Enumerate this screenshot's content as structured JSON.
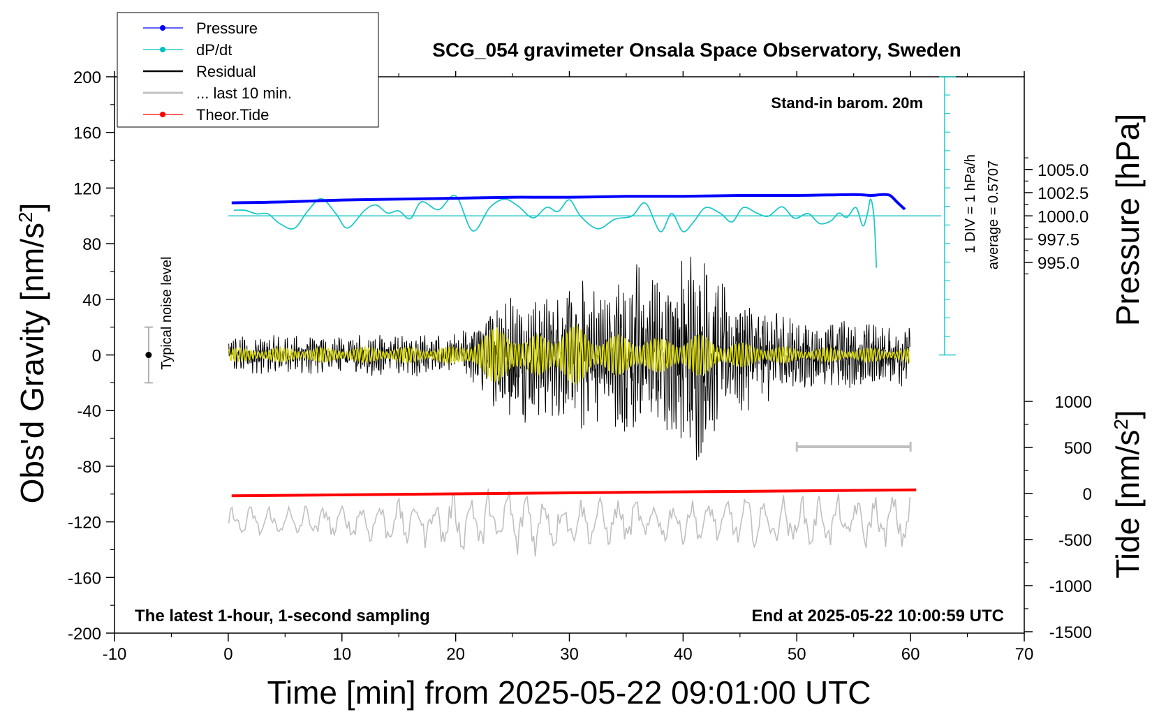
{
  "chart_data": {
    "type": "line",
    "title": "SCG_054 gravimeter Onsala Space Observatory, Sweden",
    "xlabel": "Time [min] from 2025-05-22 09:01:00 UTC",
    "ylabel_left": "Obs'd Gravity [nm/s",
    "ylabel_right_top": "Pressure [hPa]",
    "ylabel_right_bottom": "Tide [nm/s",
    "unit_superscript": "2",
    "xlim": [
      -10,
      70
    ],
    "ylim_left": [
      -200,
      200
    ],
    "x_ticks": [
      "-10",
      "0",
      "10",
      "20",
      "30",
      "40",
      "50",
      "60",
      "70"
    ],
    "y_ticks_left": [
      "200",
      "160",
      "120",
      "80",
      "40",
      "0",
      "-40",
      "-80",
      "-120",
      "-160",
      "-200"
    ],
    "pressure_ticks": [
      "1005.0",
      "1002.5",
      "1000.0",
      "997.5",
      "995.0"
    ],
    "tide_ticks": [
      "1000",
      "500",
      "0",
      "-500",
      "-1000",
      "-1500"
    ],
    "annotations": {
      "stand_in": "Stand-in barom. 20m",
      "latest": "The latest 1-hour, 1-second sampling",
      "end_at": "End at 2025-05-22 10:00:59 UTC",
      "noise": "Typical noise level",
      "div": "1 DIV = 1 hPa/h",
      "average": "average = 0.5707"
    },
    "legend": [
      {
        "label": "Pressure",
        "color": "#0000ff",
        "marker": "dot"
      },
      {
        "label": "dP/dt",
        "color": "#00c0c0",
        "marker": "dot"
      },
      {
        "label": "Residual",
        "color": "#000000",
        "marker": "none"
      },
      {
        "label": "... last 10 min.",
        "color": "#c0c0c0",
        "marker": "none"
      },
      {
        "label": "Theor.Tide",
        "color": "#ff0000",
        "marker": "dot"
      }
    ],
    "colors": {
      "pressure": "#0000ff",
      "dpdt": "#20c8c8",
      "residual": "#000000",
      "filtered": "#d8d800",
      "last10": "#c0c0c0",
      "tide": "#ff0000"
    },
    "series": {
      "pressure": {
        "name": "Pressure",
        "unit": "hPa",
        "x": [
          0.3,
          5,
          10,
          15,
          20,
          25,
          30,
          35,
          40,
          45,
          50,
          55,
          56.5,
          57.5,
          58.2,
          58.8,
          59.5
        ],
        "y": [
          1001.4,
          1001.5,
          1001.7,
          1001.8,
          1001.9,
          1002.0,
          1002.0,
          1002.1,
          1002.1,
          1002.2,
          1002.2,
          1002.3,
          1002.2,
          1002.3,
          1002.2,
          1001.5,
          1000.7
        ]
      },
      "dpdt": {
        "name": "dP/dt",
        "unit": "hPa/h (1 DIV = 1 hPa/h, baseline at average)",
        "x": [
          0.5,
          1.5,
          2.5,
          3.5,
          4.5,
          5.8,
          7,
          8.2,
          9.5,
          10.5,
          12,
          13,
          14,
          15,
          16,
          17,
          18.5,
          20,
          21.5,
          23,
          24.3,
          25.5,
          26.8,
          28,
          29,
          30,
          31,
          32.5,
          34,
          35.5,
          36.7,
          38,
          39,
          40,
          41,
          42,
          43.3,
          44.3,
          45.3,
          46.5,
          47.5,
          48.7,
          49.8,
          51,
          52,
          53,
          53.7,
          54.4,
          55.2,
          55.8,
          56.2,
          56.5,
          56.8,
          57.0
        ],
        "y": [
          1.34,
          1.33,
          1.12,
          1.12,
          0.55,
          0.25,
          1.3,
          2.03,
          1.1,
          0.27,
          1.33,
          1.65,
          1.17,
          1.3,
          0.83,
          1.84,
          1.37,
          2.2,
          0.1,
          1.5,
          2.0,
          1.58,
          0.88,
          1.51,
          1.26,
          1.96,
          0.97,
          0.23,
          0.8,
          0.99,
          1.76,
          0.06,
          1.14,
          0.06,
          0.71,
          1.5,
          1.14,
          0.64,
          1.5,
          1.16,
          0.98,
          1.54,
          0.86,
          1.14,
          0.54,
          0.7,
          1.17,
          0.91,
          1.5,
          0.41,
          1.1,
          2.0,
          0.8,
          -2.1
        ]
      },
      "residual": {
        "name": "Residual",
        "unit": "nm/s2",
        "envelope_x": [
          0,
          10,
          20,
          22,
          25,
          28,
          31,
          33,
          36,
          38,
          41,
          42.5,
          44,
          47,
          50,
          55,
          60
        ],
        "amplitude": [
          11,
          12,
          13,
          20,
          42,
          35,
          45,
          38,
          60,
          42,
          65,
          52,
          38,
          30,
          22,
          20,
          18
        ]
      },
      "filtered": {
        "name": "Filtered residual",
        "unit": "nm/s2",
        "envelope_x": [
          0,
          20,
          22.5,
          24.5,
          26,
          28,
          31,
          33,
          36,
          38,
          41,
          44,
          50,
          60
        ],
        "amplitude": [
          5,
          6,
          15,
          28,
          10,
          20,
          22,
          14,
          16,
          12,
          16,
          10,
          5,
          5
        ]
      },
      "last10": {
        "name": "... last 10 min.",
        "unit": "nm/s2",
        "offset": -120,
        "envelope_x": [
          0,
          10,
          20,
          25,
          30,
          40,
          50,
          60
        ],
        "amplitude": [
          10,
          11,
          18,
          25,
          15,
          14,
          17,
          17
        ]
      },
      "tide": {
        "name": "Theor.Tide",
        "unit": "nm/s2",
        "x": [
          0.3,
          60.5
        ],
        "y": [
          -25,
          40
        ]
      }
    }
  }
}
